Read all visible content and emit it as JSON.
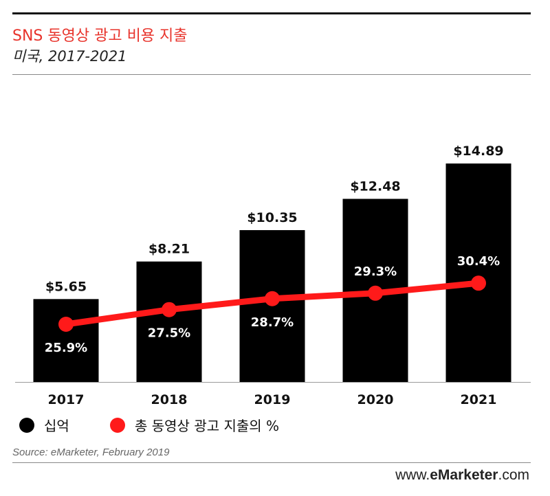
{
  "header": {
    "title": "SNS 동영상 광고 비용 지출",
    "subtitle": "미국, 2017-2021"
  },
  "chart_data": {
    "type": "bar",
    "categories": [
      "2017",
      "2018",
      "2019",
      "2020",
      "2021"
    ],
    "series": [
      {
        "name": "십억",
        "type": "bar",
        "values": [
          5.65,
          8.21,
          10.35,
          12.48,
          14.89
        ],
        "labels": [
          "$5.65",
          "$8.21",
          "$10.35",
          "$12.48",
          "$14.89"
        ],
        "color": "#000000"
      },
      {
        "name": "총 동영상 광고 지출의 %",
        "type": "line",
        "values": [
          25.9,
          27.5,
          28.7,
          29.3,
          30.4
        ],
        "labels": [
          "25.9%",
          "27.5%",
          "28.7%",
          "29.3%",
          "30.4%"
        ],
        "color": "#ff1a1a"
      }
    ],
    "legend_position": "bottom-left"
  },
  "legend": {
    "bars_label": "십억",
    "line_label": "총 동영상 광고 지출의 %"
  },
  "source": "Source: eMarketer, February 2019",
  "brand": {
    "prefix": "www.",
    "name": "eMarketer",
    "suffix": ".com"
  }
}
